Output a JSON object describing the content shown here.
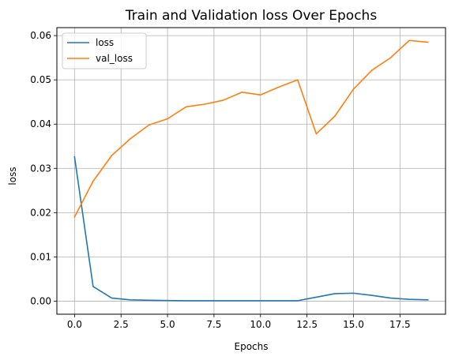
{
  "chart_data": {
    "type": "line",
    "title": "Train and Validation loss Over Epochs",
    "xlabel": "Epochs",
    "ylabel": "loss",
    "xlim": [
      -0.95,
      19.95
    ],
    "ylim": [
      -0.00295,
      0.0618
    ],
    "xticks": [
      0.0,
      2.5,
      5.0,
      7.5,
      10.0,
      12.5,
      15.0,
      17.5
    ],
    "xtick_labels": [
      "0.0",
      "2.5",
      "5.0",
      "7.5",
      "10.0",
      "12.5",
      "15.0",
      "17.5"
    ],
    "yticks": [
      0.0,
      0.01,
      0.02,
      0.03,
      0.04,
      0.05,
      0.06
    ],
    "ytick_labels": [
      "0.00",
      "0.01",
      "0.02",
      "0.03",
      "0.04",
      "0.05",
      "0.06"
    ],
    "grid": true,
    "legend": "top-left",
    "x": [
      0,
      1,
      2,
      3,
      4,
      5,
      6,
      7,
      8,
      9,
      10,
      11,
      12,
      13,
      14,
      15,
      16,
      17,
      18,
      19
    ],
    "series": [
      {
        "name": "loss",
        "color": "#1f77b4",
        "values": [
          0.0326,
          0.0033,
          0.0007,
          0.0003,
          0.0002,
          0.00015,
          0.0001,
          0.0001,
          0.0001,
          0.0001,
          0.0001,
          0.0001,
          0.0001,
          0.0009,
          0.0017,
          0.0018,
          0.0013,
          0.0007,
          0.0004,
          0.0003
        ]
      },
      {
        "name": "val_loss",
        "color": "#ff7f0e",
        "values": [
          0.019,
          0.0271,
          0.0329,
          0.0367,
          0.0398,
          0.0412,
          0.0439,
          0.0445,
          0.0454,
          0.0472,
          0.0466,
          0.0484,
          0.05,
          0.0378,
          0.0418,
          0.0479,
          0.0522,
          0.055,
          0.0589,
          0.0585
        ]
      }
    ]
  }
}
